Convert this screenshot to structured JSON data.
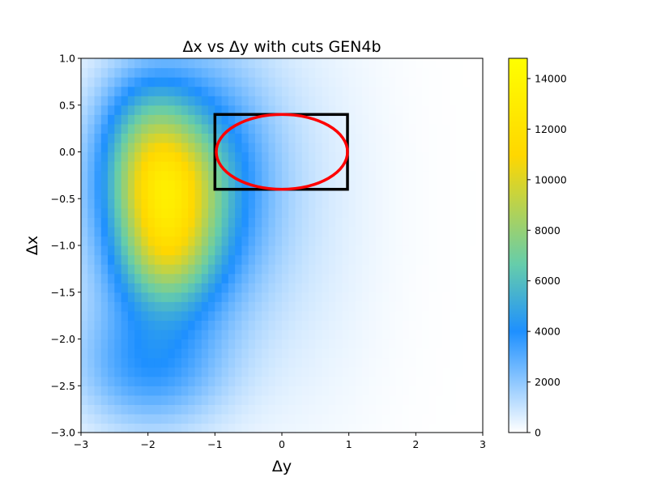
{
  "chart_data": {
    "type": "heatmap",
    "title": "Δx vs Δy with cuts GEN4b",
    "xlabel": "Δy",
    "ylabel": "Δx",
    "xlim": [
      -3,
      3
    ],
    "ylim": [
      -3,
      1
    ],
    "x_ticks": [
      -3,
      -2,
      -1,
      0,
      1,
      2,
      3
    ],
    "y_ticks": [
      -3.0,
      -2.5,
      -2.0,
      -1.5,
      -1.0,
      -0.5,
      0.0,
      0.5,
      1.0
    ],
    "x_tick_labels": [
      "−3",
      "−2",
      "−1",
      "0",
      "1",
      "2",
      "3"
    ],
    "y_tick_labels": [
      "−3.0",
      "−2.5",
      "−2.0",
      "−1.5",
      "−1.0",
      "−0.5",
      "0.0",
      "0.5",
      "1.0"
    ],
    "colorbar": {
      "range": [
        0,
        14800
      ],
      "ticks": [
        0,
        2000,
        4000,
        6000,
        8000,
        10000,
        12000,
        14000
      ],
      "tick_labels": [
        "0",
        "2000",
        "4000",
        "6000",
        "8000",
        "10000",
        "12000",
        "14000"
      ],
      "colors": [
        "#ffffff",
        "#1e90ff",
        "#66cdaa",
        "#ffd700",
        "#ffff00"
      ],
      "stops": [
        0,
        0.27,
        0.45,
        0.74,
        1.0
      ]
    },
    "density_components": [
      {
        "center": [
          -1.8,
          -0.35
        ],
        "sigma": [
          0.55,
          0.45
        ],
        "peak": 7000
      },
      {
        "center": [
          -1.75,
          -1.1
        ],
        "sigma": [
          0.5,
          0.42
        ],
        "peak": 5200
      },
      {
        "center": [
          -2.0,
          0.3
        ],
        "sigma": [
          0.5,
          0.45
        ],
        "peak": 3000
      },
      {
        "center": [
          -1.1,
          -0.3
        ],
        "sigma": [
          0.7,
          0.9
        ],
        "peak": 3200
      },
      {
        "center": [
          -2.0,
          -2.3
        ],
        "sigma": [
          0.75,
          0.45
        ],
        "peak": 2600
      },
      {
        "center": [
          -1.9,
          -0.8
        ],
        "sigma": [
          0.95,
          1.3
        ],
        "peak": 2200
      },
      {
        "center": [
          0.2,
          -0.6
        ],
        "sigma": [
          0.9,
          1.6
        ],
        "peak": 700
      }
    ],
    "cut_rectangle": {
      "x": [
        -1.0,
        0.98
      ],
      "y": [
        -0.4,
        0.4
      ],
      "color": "#000000"
    },
    "cut_ellipse": {
      "center": [
        0.0,
        0.0
      ],
      "rx": 0.98,
      "ry": 0.4,
      "color": "#ff0000"
    }
  }
}
